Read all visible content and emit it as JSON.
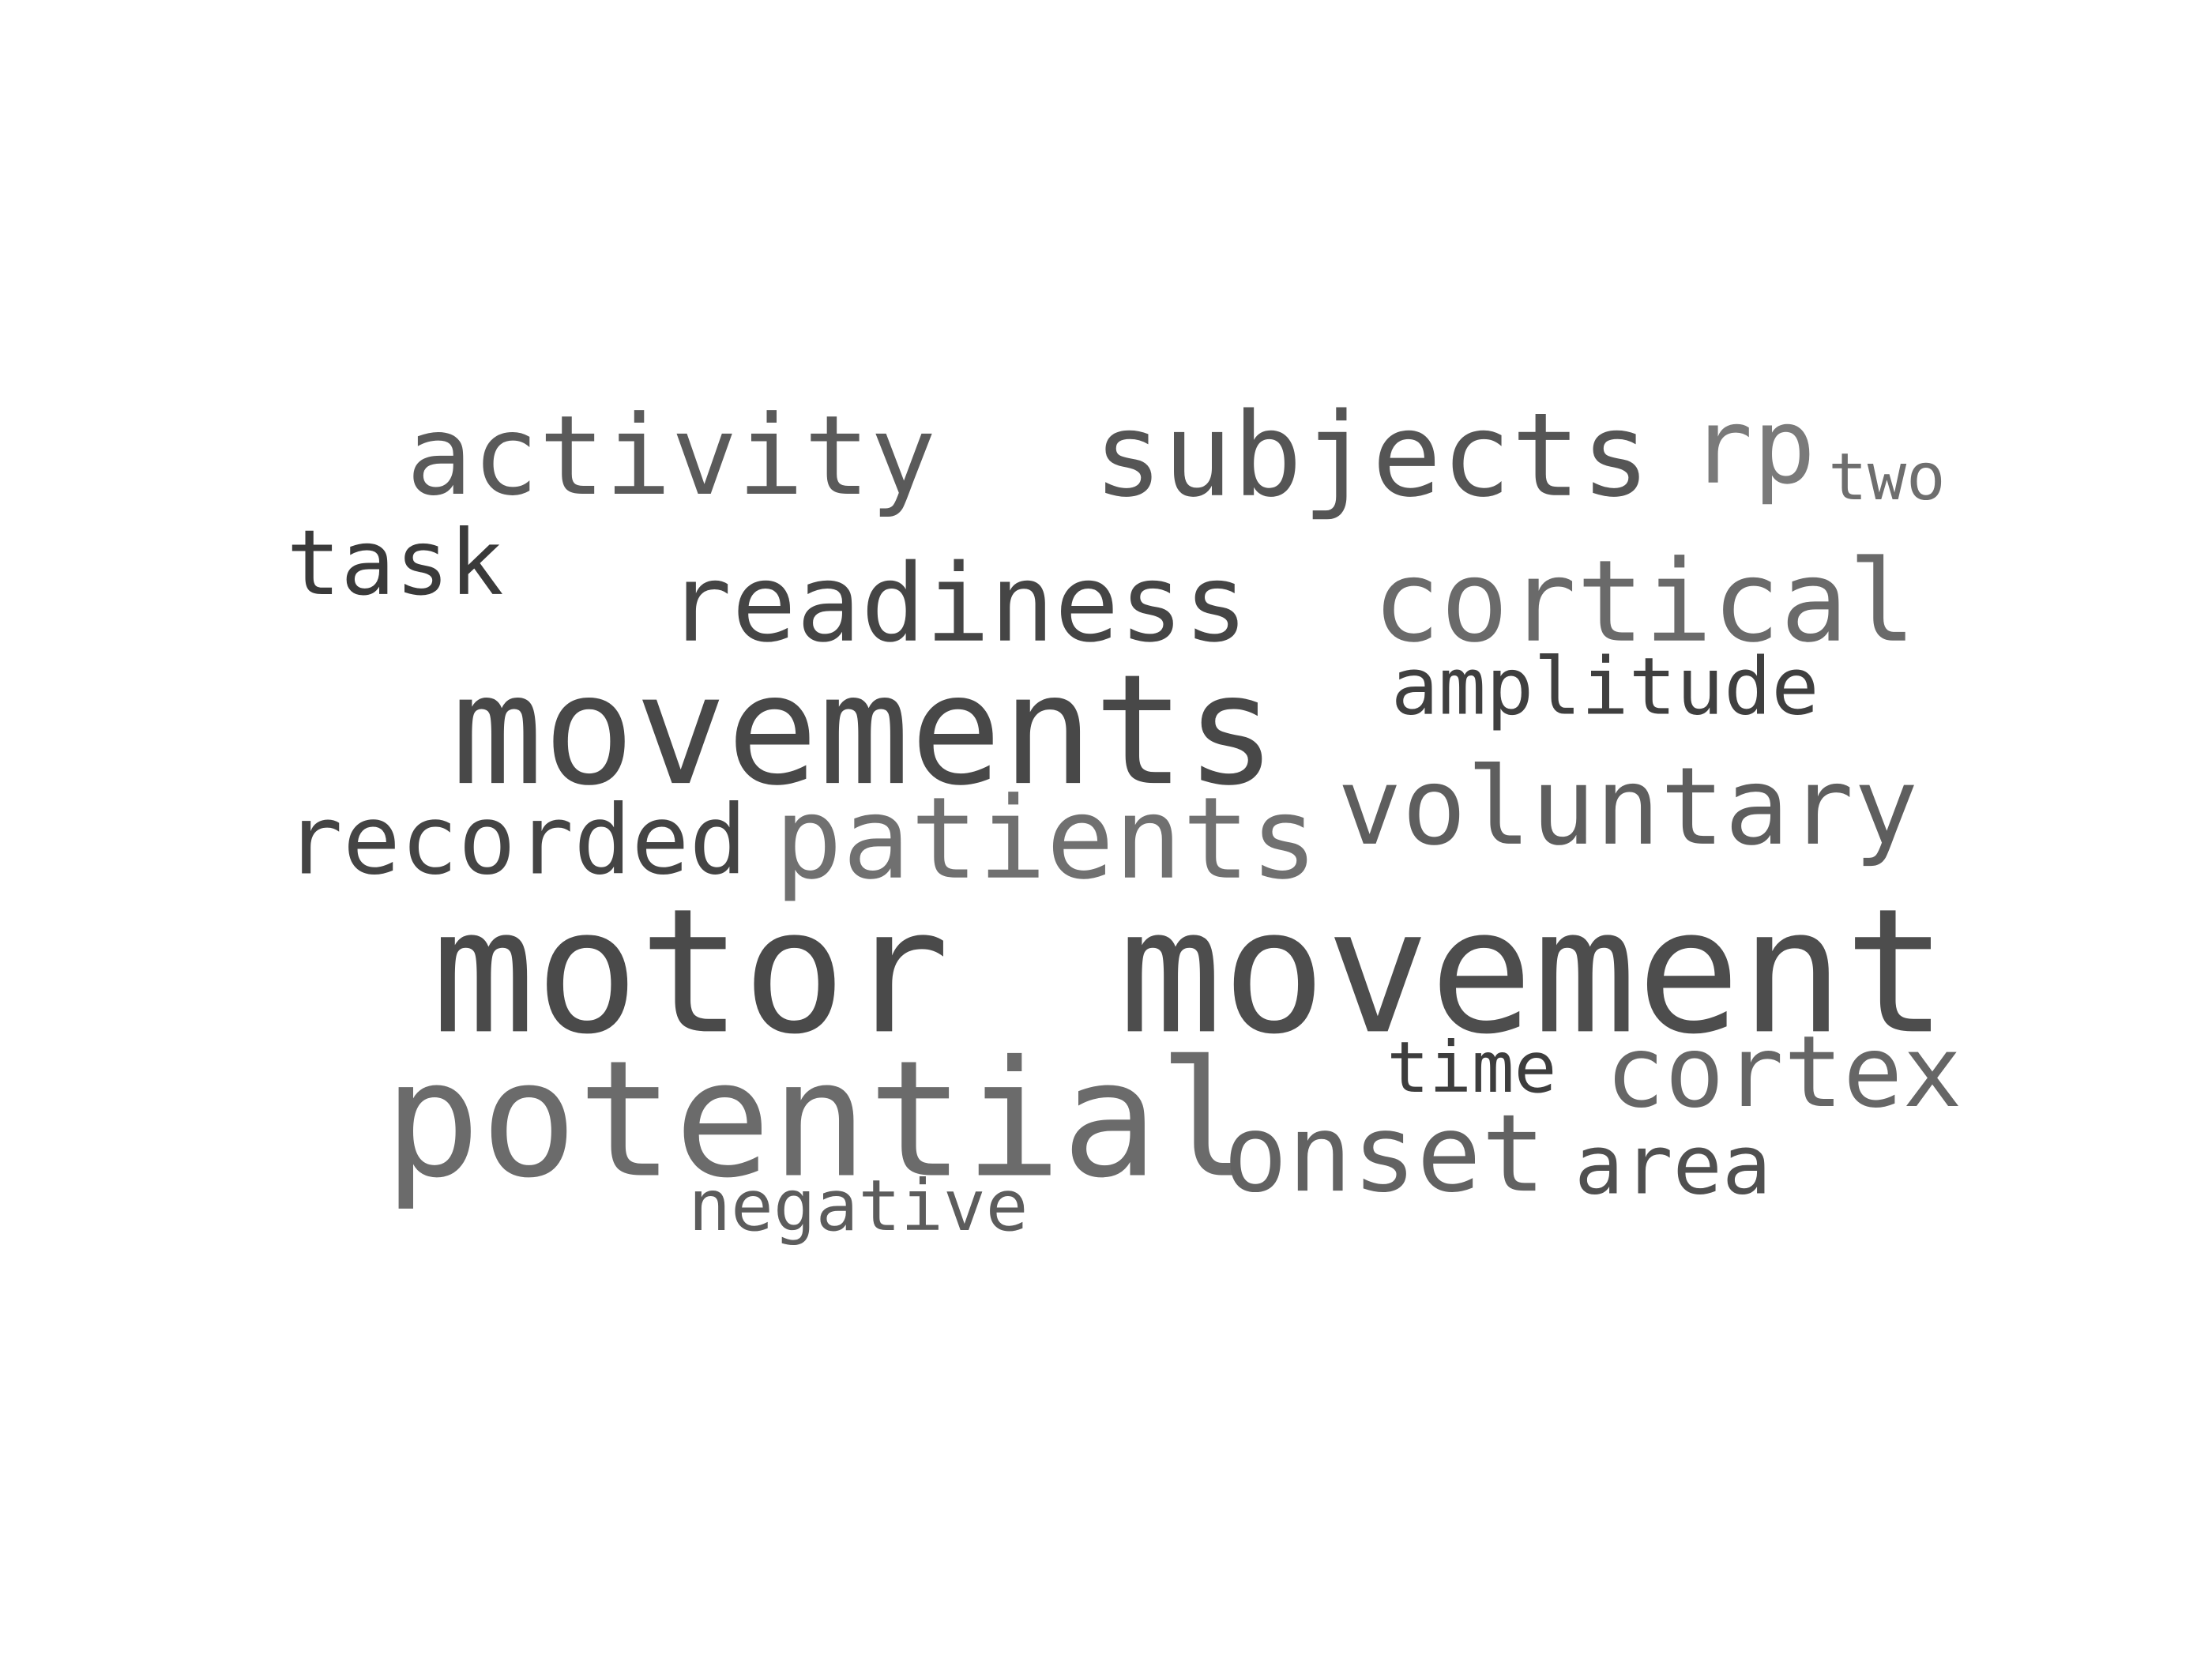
{
  "words": {
    "activity": {
      "text": "activity",
      "color": "#5a5a5a"
    },
    "subjects": {
      "text": "subjects",
      "color": "#555555"
    },
    "rp": {
      "text": "rp",
      "color": "#7a7a7a"
    },
    "two": {
      "text": "two",
      "color": "#6e6e6e"
    },
    "task": {
      "text": "task",
      "color": "#3a3a3a"
    },
    "readiness": {
      "text": "readiness",
      "color": "#454545"
    },
    "cortical": {
      "text": "cortical",
      "color": "#6a6a6a"
    },
    "amplitude": {
      "text": "amplitude",
      "color": "#3f3f3f"
    },
    "movements": {
      "text": "movements",
      "color": "#484848"
    },
    "voluntary": {
      "text": "voluntary",
      "color": "#5e5e5e"
    },
    "recorded": {
      "text": "recorded",
      "color": "#444444"
    },
    "patients": {
      "text": "patients",
      "color": "#707070"
    },
    "motor": {
      "text": "motor",
      "color": "#4a4a4a"
    },
    "movement": {
      "text": "movement",
      "color": "#4d4d4d"
    },
    "time": {
      "text": "time",
      "color": "#3d3d3d"
    },
    "cortex": {
      "text": "cortex",
      "color": "#666666"
    },
    "potential": {
      "text": "potential",
      "color": "#6b6b6b"
    },
    "onset": {
      "text": "onset",
      "color": "#626262"
    },
    "area": {
      "text": "area",
      "color": "#505050"
    },
    "negative": {
      "text": "negative",
      "color": "#5c5c5c"
    }
  }
}
